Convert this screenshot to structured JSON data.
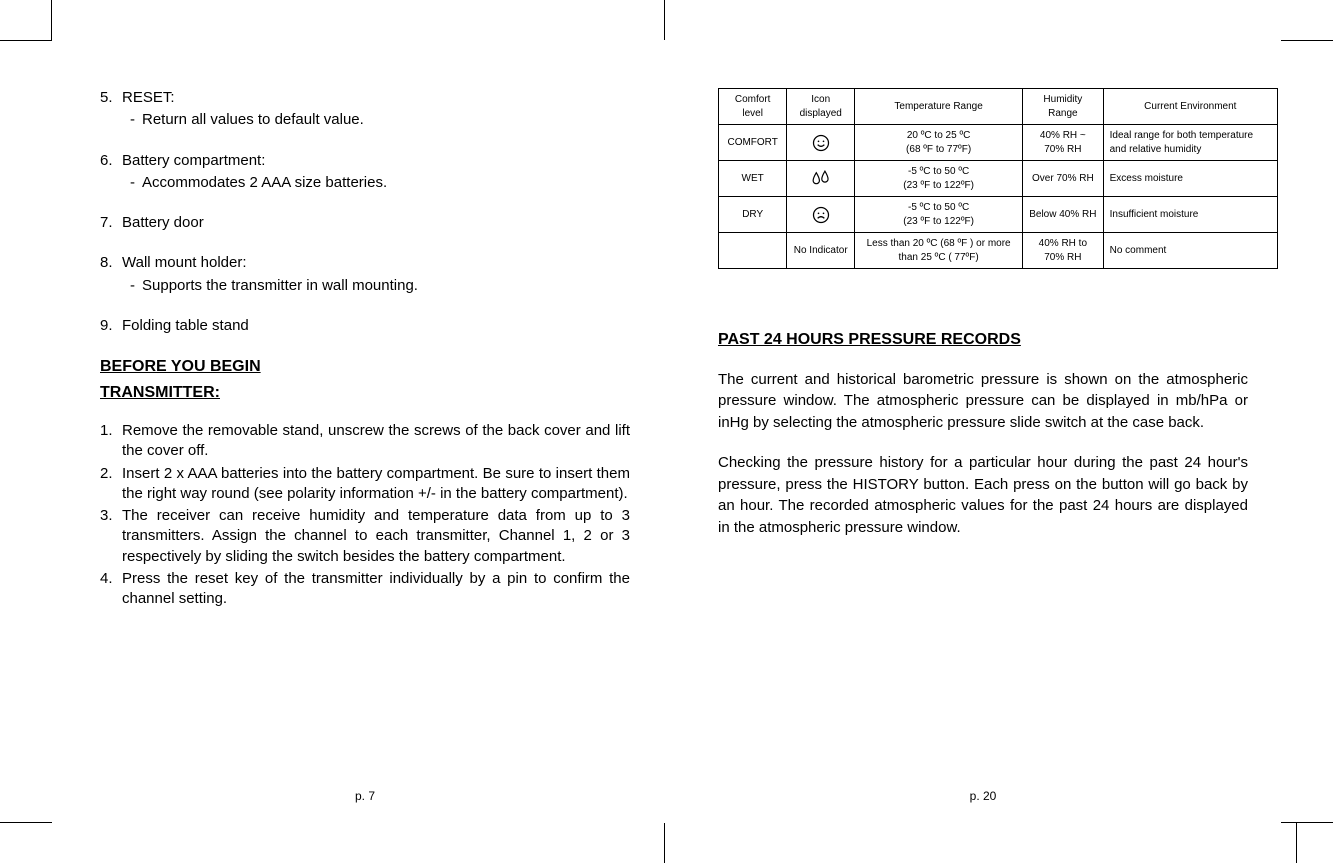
{
  "left_page": {
    "items": [
      {
        "num": "5.",
        "label": "RESET:",
        "sub": "Return all values to default value."
      },
      {
        "num": "6.",
        "label": "Battery compartment:",
        "sub": "Accommodates 2 AAA size batteries."
      },
      {
        "num": "7.",
        "label": "Battery door",
        "sub": null
      },
      {
        "num": "8.",
        "label": "Wall mount holder:",
        "sub": "Supports the transmitter in wall mounting."
      },
      {
        "num": "9.",
        "label": " Folding table stand",
        "sub": null
      }
    ],
    "heading1": "BEFORE YOU BEGIN",
    "heading2": "TRANSMITTER:",
    "steps": [
      {
        "num": "1.",
        "text": "Remove the removable stand, unscrew the screws of the back cover and lift the cover off."
      },
      {
        "num": "2.",
        "text": "Insert 2 x AAA batteries into the battery compartment. Be sure to insert them the right way round (see polarity information +/- in the battery compartment)."
      },
      {
        "num": "3.",
        "text": "The receiver can receive humidity and temperature data from up to 3 transmitters. Assign the channel to each transmitter, Channel 1, 2 or 3 respectively by sliding the switch besides the battery compartment."
      },
      {
        "num": "4.",
        "text": "Press the reset key of the transmitter individually by a pin to confirm the channel setting."
      }
    ],
    "page_num": "p. 7"
  },
  "right_page": {
    "table": {
      "headers": [
        "Comfort level",
        "Icon displayed",
        "Temperature Range",
        "Humidity Range",
        "Current Environment"
      ],
      "rows": [
        {
          "level": "COMFORT",
          "icon": "smile",
          "temp": "20 ºC to 25 ºC\n(68 ºF to 77ºF)",
          "humidity": "40% RH ~ 70% RH",
          "env": "Ideal range for both temperature and relative humidity"
        },
        {
          "level": "WET",
          "icon": "drops",
          "temp": "-5 ºC to 50 ºC\n(23 ºF to 122ºF)",
          "humidity": "Over 70% RH",
          "env": "Excess moisture"
        },
        {
          "level": "DRY",
          "icon": "sad",
          "temp": "-5 ºC to 50 ºC\n(23 ºF to 122ºF)",
          "humidity": "Below 40% RH",
          "env": "Insufficient moisture"
        },
        {
          "level": "",
          "icon": "none",
          "icon_text": "No Indicator",
          "temp": "Less than 20 ºC (68 ºF ) or more than 25 ºC ( 77ºF)",
          "humidity": "40% RH to 70% RH",
          "env": "No comment"
        }
      ]
    },
    "heading": "PAST 24 HOURS PRESSURE RECORDS",
    "para1": "The current and historical barometric pressure is shown on the atmospheric pressure window. The atmospheric pressure can be displayed in mb/hPa or inHg by selecting the atmospheric pressure slide switch at the case back.",
    "para2": "Checking the pressure history for a particular hour during the past 24 hour's pressure, press the HISTORY button. Each press on the button will go back by an hour. The recorded atmospheric values for the past 24 hours are displayed in the atmospheric pressure window.",
    "page_num": "p. 20"
  }
}
